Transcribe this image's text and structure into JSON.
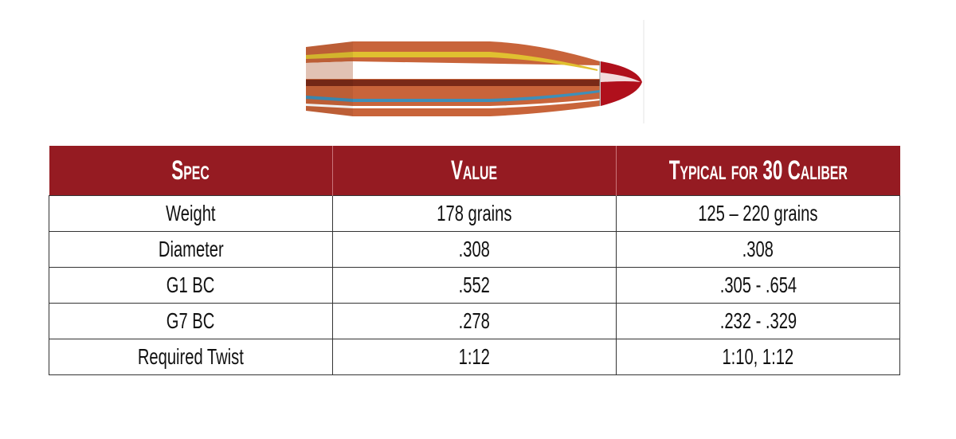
{
  "image": {
    "name": "bullet-illustration",
    "colors": {
      "jacket": "#c8643a",
      "tip": "#b0101c",
      "stripe_yellow": "#e0c030",
      "stripe_blue": "#3e8fb8"
    }
  },
  "table": {
    "header_color": "#951b22",
    "headers": [
      "Spec",
      "Value",
      "Typical for 30 Caliber"
    ],
    "rows": [
      [
        "Weight",
        "178 grains",
        "125 – 220 grains"
      ],
      [
        "Diameter",
        ".308",
        ".308"
      ],
      [
        "G1 BC",
        ".552",
        ".305 - .654"
      ],
      [
        "G7 BC",
        ".278",
        ".232 - .329"
      ],
      [
        "Required Twist",
        "1:12",
        "1:10, 1:12"
      ]
    ]
  }
}
